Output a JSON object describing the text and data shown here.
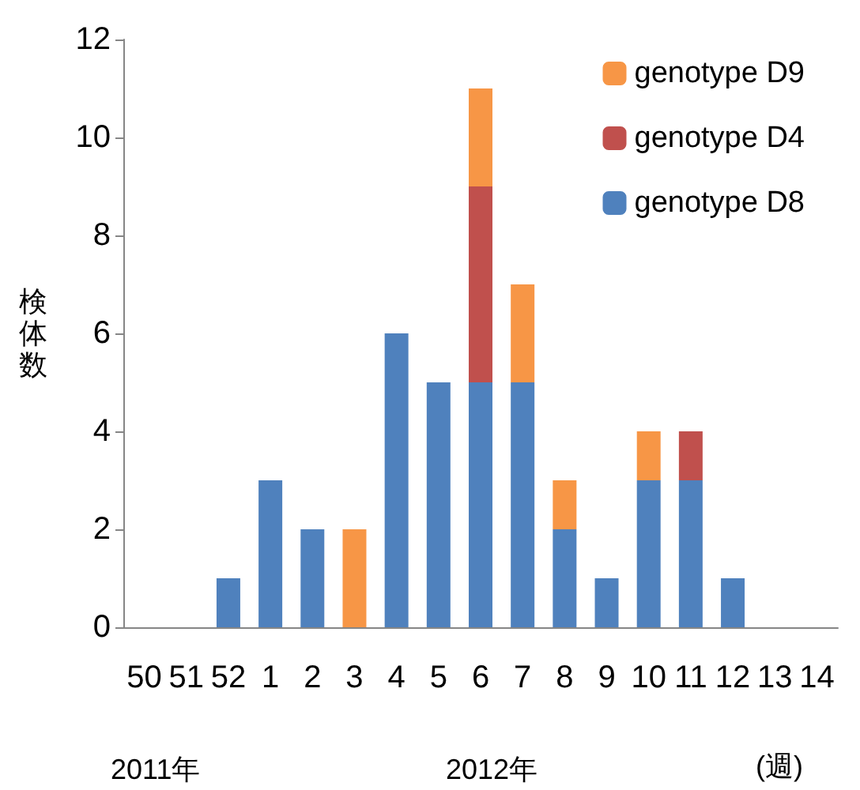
{
  "chart_data": {
    "type": "bar",
    "stacked": true,
    "ylabel": "検体数",
    "categories": [
      "50",
      "51",
      "52",
      "1",
      "2",
      "3",
      "4",
      "5",
      "6",
      "7",
      "8",
      "9",
      "10",
      "11",
      "12",
      "13",
      "14"
    ],
    "series": [
      {
        "name": "genotype D8",
        "color": "#4f81bd",
        "values": [
          null,
          null,
          1,
          3,
          2,
          null,
          6,
          5,
          5,
          5,
          2,
          1,
          3,
          3,
          1,
          null,
          null
        ]
      },
      {
        "name": "genotype D4",
        "color": "#c0504d",
        "values": [
          null,
          null,
          null,
          null,
          null,
          null,
          null,
          null,
          4,
          null,
          null,
          null,
          null,
          1,
          null,
          null,
          null
        ]
      },
      {
        "name": "genotype D9",
        "color": "#f79646",
        "values": [
          null,
          null,
          null,
          null,
          null,
          2,
          null,
          null,
          2,
          2,
          1,
          null,
          1,
          null,
          null,
          null,
          null
        ]
      }
    ],
    "ylim": [
      0,
      12
    ],
    "yticks": [
      0,
      2,
      4,
      6,
      8,
      10,
      12
    ],
    "grid": false,
    "legend": "top right",
    "annotations": [
      "2011年",
      "2012年",
      "(週)"
    ]
  }
}
